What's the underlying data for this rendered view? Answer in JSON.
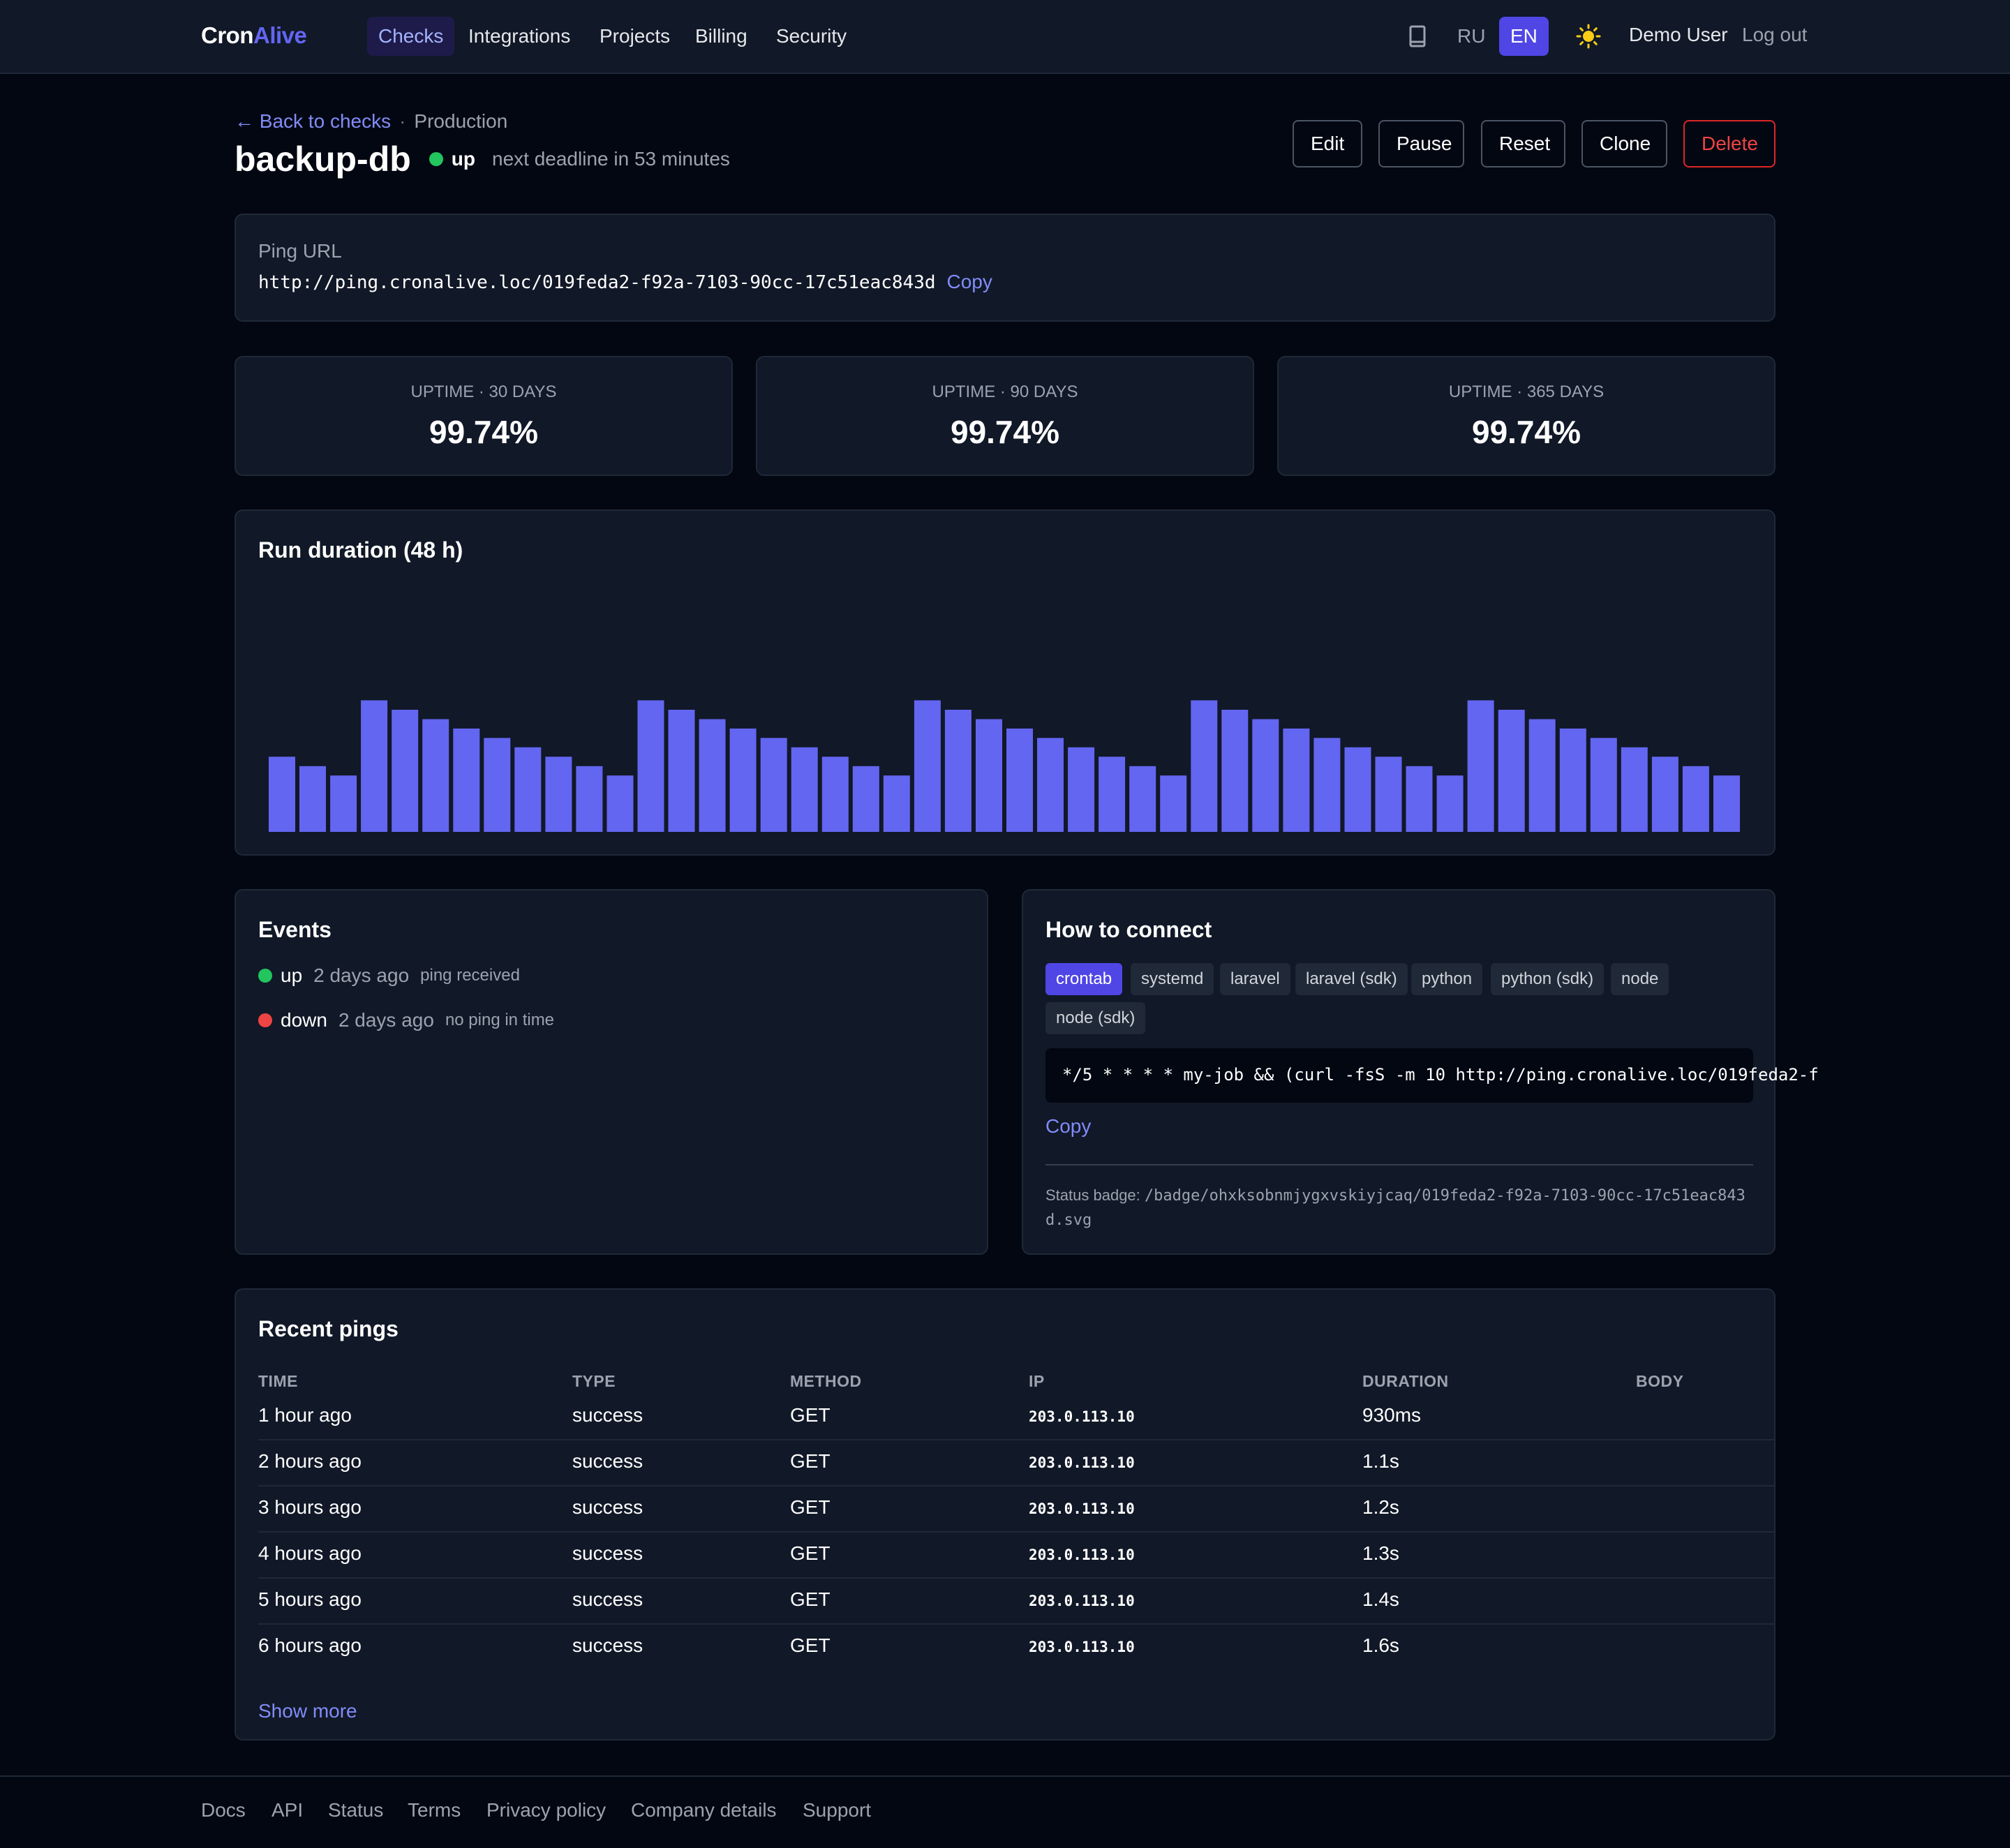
{
  "nav": {
    "logo_part1": "Cron",
    "logo_part2": "Alive",
    "items": [
      {
        "label": "Checks",
        "active": true
      },
      {
        "label": "Integrations"
      },
      {
        "label": "Projects"
      },
      {
        "label": "Billing"
      },
      {
        "label": "Security"
      }
    ],
    "docs_icon": "book-icon",
    "languages": [
      {
        "label": "RU"
      },
      {
        "label": "EN",
        "active": true
      }
    ],
    "theme_icon": "sun-icon",
    "user": "Demo User",
    "logout": "Log out"
  },
  "header": {
    "back_link": "← Back to checks",
    "separator": "·",
    "project": "Production",
    "title": "backup-db",
    "status": "up",
    "status_color": "#22c55e",
    "deadline": "next deadline in 53 minutes",
    "actions": {
      "edit": "Edit",
      "pause": "Pause",
      "reset": "Reset",
      "clone": "Clone",
      "delete": "Delete"
    }
  },
  "ping": {
    "label": "Ping URL",
    "url": "http://ping.cronalive.loc/019feda2-f92a-7103-90cc-17c51eac843d",
    "copy": "Copy"
  },
  "uptime": [
    {
      "label": "UPTIME · 30 DAYS",
      "value": "99.74%"
    },
    {
      "label": "UPTIME · 90 DAYS",
      "value": "99.74%"
    },
    {
      "label": "UPTIME · 365 DAYS",
      "value": "99.74%"
    }
  ],
  "chart_data": {
    "type": "bar",
    "title": "Run duration (48 h)",
    "bar_color": "#6366f1",
    "values": [
      1.6,
      1.4,
      1.2,
      2.8,
      2.6,
      2.4,
      2.2,
      2.0,
      1.8,
      1.6,
      1.4,
      1.2,
      2.8,
      2.6,
      2.4,
      2.2,
      2.0,
      1.8,
      1.6,
      1.4,
      1.2,
      2.8,
      2.6,
      2.4,
      2.2,
      2.0,
      1.8,
      1.6,
      1.4,
      1.2,
      2.8,
      2.6,
      2.4,
      2.2,
      2.0,
      1.8,
      1.6,
      1.4,
      1.2,
      2.8,
      2.6,
      2.4,
      2.2,
      2.0,
      1.8,
      1.6,
      1.4,
      1.2
    ],
    "ylim": [
      0,
      5.2
    ],
    "grid": false
  },
  "events": {
    "title": "Events",
    "items": [
      {
        "status": "up",
        "when": "2 days ago",
        "note": "ping received",
        "color": "#22c55e"
      },
      {
        "status": "down",
        "when": "2 days ago",
        "note": "no ping in time",
        "color": "#ef4444"
      }
    ]
  },
  "connect": {
    "title": "How to connect",
    "tabs": [
      {
        "label": "crontab",
        "active": true
      },
      {
        "label": "systemd"
      },
      {
        "label": "laravel"
      },
      {
        "label": "laravel (sdk)"
      },
      {
        "label": "python"
      },
      {
        "label": "python (sdk)"
      },
      {
        "label": "node"
      },
      {
        "label": "node (sdk)"
      }
    ],
    "code": "*/5 * * * * my-job && (curl -fsS -m 10 http://ping.cronalive.loc/019feda2-f",
    "copy": "Copy",
    "badge_label": "Status badge:",
    "badge_path": "/badge/ohxksobnmjygxvskiyjcaq/019feda2-f92a-7103-90cc-17c51eac843d.svg"
  },
  "pings": {
    "title": "Recent pings",
    "columns": [
      "TIME",
      "TYPE",
      "METHOD",
      "IP",
      "DURATION",
      "BODY"
    ],
    "rows": [
      {
        "time": "1 hour ago",
        "type": "success",
        "method": "GET",
        "ip": "203.0.113.10",
        "duration": "930ms",
        "body": ""
      },
      {
        "time": "2 hours ago",
        "type": "success",
        "method": "GET",
        "ip": "203.0.113.10",
        "duration": "1.1s",
        "body": ""
      },
      {
        "time": "3 hours ago",
        "type": "success",
        "method": "GET",
        "ip": "203.0.113.10",
        "duration": "1.2s",
        "body": ""
      },
      {
        "time": "4 hours ago",
        "type": "success",
        "method": "GET",
        "ip": "203.0.113.10",
        "duration": "1.3s",
        "body": ""
      },
      {
        "time": "5 hours ago",
        "type": "success",
        "method": "GET",
        "ip": "203.0.113.10",
        "duration": "1.4s",
        "body": ""
      },
      {
        "time": "6 hours ago",
        "type": "success",
        "method": "GET",
        "ip": "203.0.113.10",
        "duration": "1.6s",
        "body": ""
      }
    ],
    "show_more": "Show more"
  },
  "footer": {
    "links": [
      "Docs",
      "API",
      "Status",
      "Terms",
      "Privacy policy",
      "Company details",
      "Support"
    ]
  }
}
